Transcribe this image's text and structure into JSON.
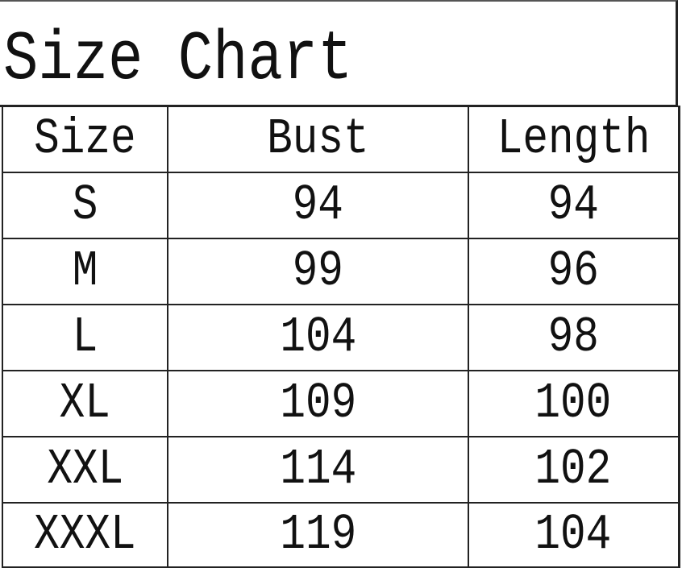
{
  "title": "Size Chart",
  "table": {
    "headers": [
      "Size",
      "Bust",
      "Length"
    ],
    "rows": [
      [
        "S",
        "94",
        "94"
      ],
      [
        "M",
        "99",
        "96"
      ],
      [
        "L",
        "104",
        "98"
      ],
      [
        "XL",
        "109",
        "100"
      ],
      [
        "XXL",
        "114",
        "102"
      ],
      [
        "XXXL",
        "119",
        "104"
      ]
    ]
  }
}
